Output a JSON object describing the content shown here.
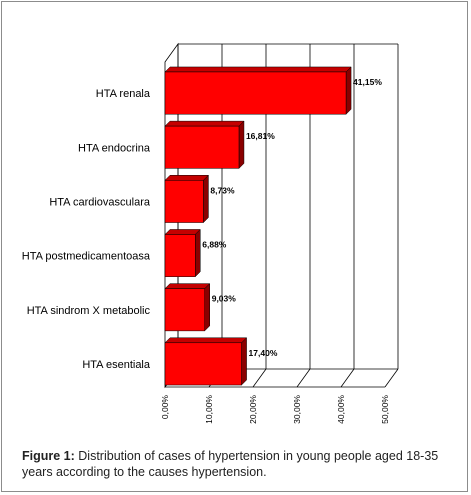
{
  "chart_data": {
    "type": "bar",
    "orientation": "horizontal",
    "categories": [
      "HTA renala",
      "HTA endocrina",
      "HTA cardiovasculara",
      "HTA postmedicamentoasa",
      "HTA sindrom X metabolic",
      "HTA esentiala"
    ],
    "values": [
      41.15,
      16.81,
      8.73,
      6.88,
      9.03,
      17.4
    ],
    "value_labels": [
      "41,15%",
      "16,81%",
      "8,73%",
      "6,88%",
      "9,03%",
      "17,40%"
    ],
    "x_ticks": [
      "0,00%",
      "10,00%",
      "20,00%",
      "30,00%",
      "40,00%",
      "50,00%"
    ],
    "xlim": [
      0,
      50
    ],
    "title": "",
    "xlabel": "",
    "ylabel": "",
    "grid": true,
    "three_d": true,
    "bar_color": "#ff0000",
    "bar_top_color": "#c40000",
    "bar_side_color": "#8a0000"
  },
  "caption": {
    "label": "Figure 1:",
    "text": " Distribution of cases of hypertension in young people aged 18-35 years according to the causes hypertension."
  }
}
